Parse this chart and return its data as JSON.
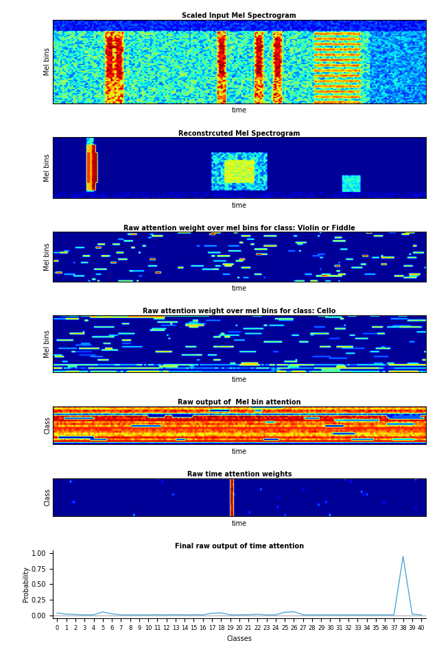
{
  "fig_width": 6.4,
  "fig_height": 9.6,
  "dpi": 100,
  "titles": [
    "Scaled Input Mel Spectrogram",
    "Reconstrcuted Mel Spectrogram",
    "Raw attention weight over mel bins for class: Violin or Fiddle",
    "Raw attention weight over mel bins for class: Cello",
    "Raw output of  Mel bin attention",
    "Raw time attention weights",
    "Final raw output of time attention"
  ],
  "xlabels": [
    "time",
    "time",
    "time",
    "time",
    "time",
    "time",
    "Classes"
  ],
  "ylabels": [
    "Mel bins",
    "Mel bins",
    "Mel bins",
    "Mel bins",
    "Class",
    "Class",
    "Probability"
  ],
  "seed": 42,
  "line_color": "#4da6d9",
  "line_data_x": [
    0,
    1,
    2,
    3,
    4,
    5,
    6,
    7,
    8,
    9,
    10,
    11,
    12,
    13,
    14,
    15,
    16,
    17,
    18,
    19,
    20,
    21,
    22,
    23,
    24,
    25,
    26,
    27,
    28,
    29,
    30,
    31,
    32,
    33,
    34,
    35,
    36,
    37,
    38,
    39,
    40
  ],
  "line_data_y": [
    0.04,
    0.02,
    0.015,
    0.01,
    0.01,
    0.055,
    0.025,
    0.01,
    0.01,
    0.01,
    0.01,
    0.012,
    0.01,
    0.012,
    0.01,
    0.012,
    0.01,
    0.035,
    0.04,
    0.01,
    0.01,
    0.012,
    0.018,
    0.01,
    0.01,
    0.05,
    0.06,
    0.01,
    0.01,
    0.01,
    0.01,
    0.01,
    0.01,
    0.01,
    0.01,
    0.01,
    0.01,
    0.01,
    0.95,
    0.02,
    0.01
  ]
}
